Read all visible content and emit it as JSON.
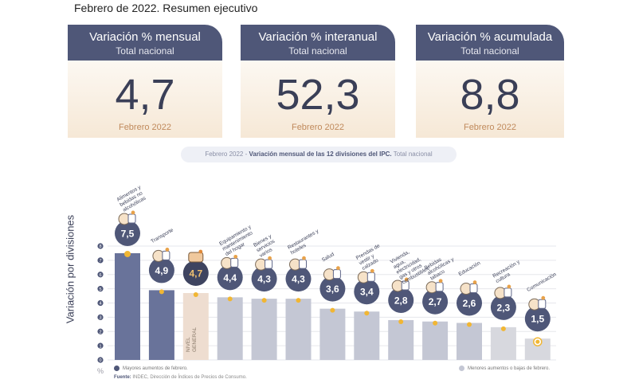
{
  "header": {
    "title": "Febrero de 2022. Resumen ejecutivo"
  },
  "cards": [
    {
      "title": "Variación % mensual",
      "subtitle": "Total nacional",
      "value": "4,7",
      "date": "Febrero 2022"
    },
    {
      "title": "Variación % interanual",
      "subtitle": "Total nacional",
      "value": "52,3",
      "date": "Febrero 2022"
    },
    {
      "title": "Variación % acumulada",
      "subtitle": "Total nacional",
      "value": "8,8",
      "date": "Febrero 2022"
    }
  ],
  "subtitle": {
    "prefix": "Febrero 2022 - ",
    "bold": "Variación mensual de las 12 divisiones del IPC.",
    "suffix": " Total nacional"
  },
  "legend": {
    "high": "Mayores aumentos de febrero.",
    "low": "Menores aumentos o bajas de febrero."
  },
  "source": {
    "label": "Fuente:",
    "text": " INDEC, Dirección de Índices de Precios de Consumo."
  },
  "chart_data": {
    "type": "bar",
    "ylabel": "Variación por divisiones",
    "yunit": "%",
    "ylim": [
      0,
      8
    ],
    "yticks": [
      0,
      1,
      2,
      3,
      4,
      5,
      6,
      7,
      8
    ],
    "grid": true,
    "legend_placement": "bottom",
    "categories": [
      "Alimentos y bebidas no alcohólicas",
      "Transporte",
      "NIVEL GENERAL",
      "Equipamiento y mantenimiento del hogar",
      "Bienes y servicios varios",
      "Restaurantes y hoteles",
      "Salud",
      "Prendas de vestir y calzado",
      "Vivienda, agua, electricidad, gas y otros combustibles",
      "Bebidas alcohólicas y tabaco",
      "Educación",
      "Recreación y cultura",
      "Comunicación"
    ],
    "labels": [
      "7,5",
      "4,9",
      "4,7",
      "4,4",
      "4,3",
      "4,3",
      "3,6",
      "3,4",
      "2,8",
      "2,7",
      "2,6",
      "2,3",
      "1,5"
    ],
    "values": [
      7.5,
      4.9,
      4.7,
      4.4,
      4.3,
      4.3,
      3.6,
      3.4,
      2.8,
      2.7,
      2.6,
      2.3,
      1.5
    ],
    "groups": [
      "high",
      "high",
      "general",
      "mid",
      "mid",
      "mid",
      "mid",
      "mid",
      "mid",
      "mid",
      "mid",
      "low",
      "low"
    ],
    "icons": [
      "food-basket-icon",
      "bus-icon",
      "",
      "home-appliance-icon",
      "scissors-icon",
      "restaurant-icon",
      "health-cross-icon",
      "clothing-icon",
      "lightbulb-icon",
      "bottle-icon",
      "graduation-icon",
      "umbrella-icon",
      "phone-icon"
    ],
    "colors": {
      "high": "#69739a",
      "general": "#eeddd0",
      "mid": "#c4c7d4",
      "low": "#d7d8de",
      "circle": "#4f5778",
      "general_circle": "#3e4460",
      "general_value": "#f0c070",
      "marker": "#f1b633",
      "grid": "#e6e7ec"
    }
  }
}
